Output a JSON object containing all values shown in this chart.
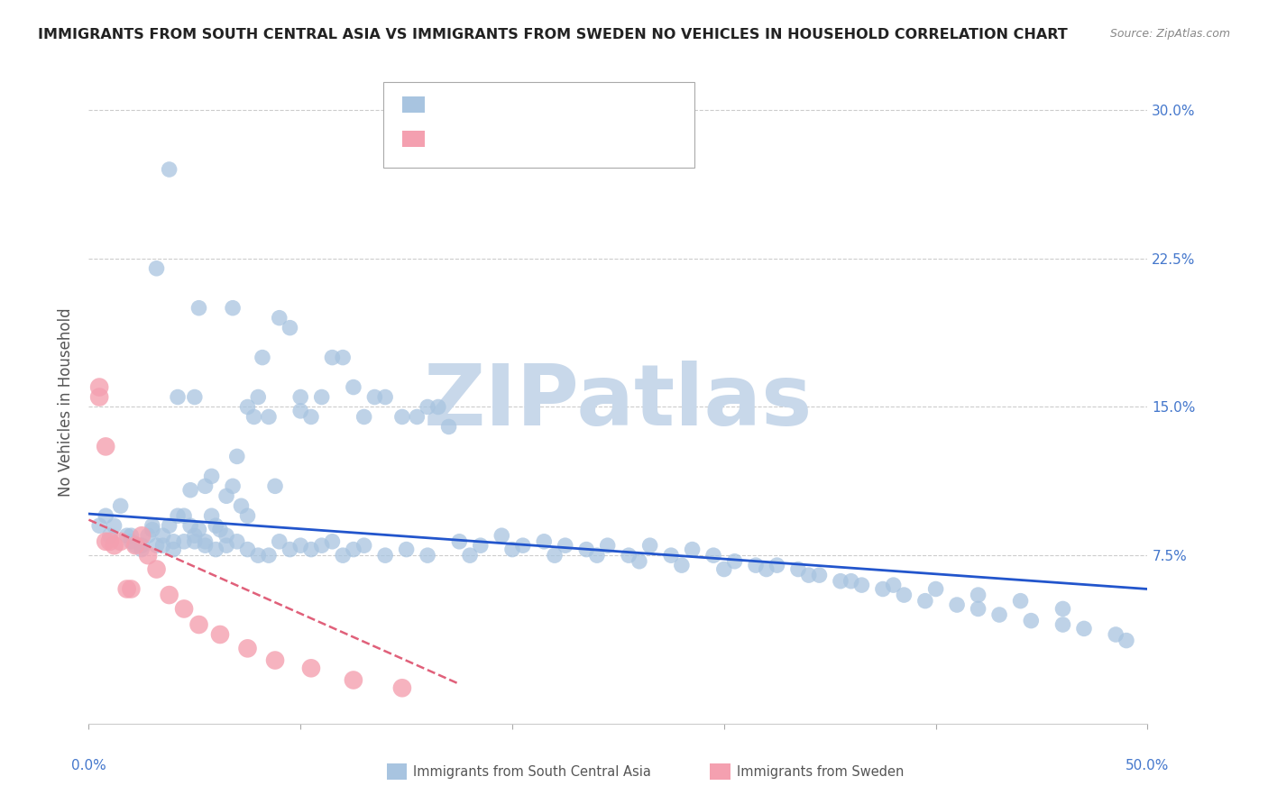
{
  "title": "IMMIGRANTS FROM SOUTH CENTRAL ASIA VS IMMIGRANTS FROM SWEDEN NO VEHICLES IN HOUSEHOLD CORRELATION CHART",
  "source": "Source: ZipAtlas.com",
  "ylabel": "No Vehicles in Household",
  "yticks": [
    0.0,
    0.075,
    0.15,
    0.225,
    0.3
  ],
  "ytick_labels": [
    "",
    "7.5%",
    "15.0%",
    "22.5%",
    "30.0%"
  ],
  "xlim": [
    0.0,
    0.5
  ],
  "ylim": [
    -0.01,
    0.315
  ],
  "legend_label1": "Immigrants from South Central Asia",
  "legend_label2": "Immigrants from Sweden",
  "blue_color": "#a8c4e0",
  "pink_color": "#f4a0b0",
  "line_blue": "#2255cc",
  "line_pink": "#e0607a",
  "watermark": "ZIPatlas",
  "watermark_color": "#c8d8ea",
  "title_color": "#222222",
  "axis_label_color": "#4477cc",
  "blue_scatter_x": [
    0.005,
    0.008,
    0.01,
    0.012,
    0.015,
    0.018,
    0.02,
    0.022,
    0.025,
    0.028,
    0.03,
    0.032,
    0.035,
    0.038,
    0.04,
    0.042,
    0.045,
    0.048,
    0.05,
    0.052,
    0.055,
    0.058,
    0.06,
    0.062,
    0.065,
    0.068,
    0.07,
    0.072,
    0.075,
    0.078,
    0.08,
    0.082,
    0.085,
    0.088,
    0.09,
    0.095,
    0.1,
    0.105,
    0.11,
    0.115,
    0.12,
    0.125,
    0.13,
    0.135,
    0.14,
    0.148,
    0.155,
    0.16,
    0.165,
    0.17,
    0.02,
    0.025,
    0.03,
    0.035,
    0.04,
    0.045,
    0.05,
    0.055,
    0.06,
    0.065,
    0.07,
    0.075,
    0.08,
    0.085,
    0.09,
    0.095,
    0.1,
    0.105,
    0.11,
    0.115,
    0.12,
    0.125,
    0.13,
    0.14,
    0.15,
    0.16,
    0.18,
    0.2,
    0.22,
    0.24,
    0.26,
    0.28,
    0.3,
    0.32,
    0.34,
    0.36,
    0.38,
    0.4,
    0.42,
    0.44,
    0.46,
    0.048,
    0.055,
    0.058,
    0.065,
    0.032,
    0.042,
    0.038,
    0.052,
    0.068,
    0.175,
    0.185,
    0.195,
    0.205,
    0.215,
    0.225,
    0.235,
    0.245,
    0.255,
    0.265,
    0.275,
    0.285,
    0.295,
    0.305,
    0.315,
    0.325,
    0.335,
    0.345,
    0.355,
    0.365,
    0.375,
    0.385,
    0.395,
    0.41,
    0.42,
    0.43,
    0.445,
    0.46,
    0.47,
    0.485,
    0.49,
    0.05,
    0.075,
    0.1
  ],
  "blue_scatter_y": [
    0.09,
    0.095,
    0.085,
    0.09,
    0.1,
    0.085,
    0.085,
    0.08,
    0.08,
    0.085,
    0.09,
    0.08,
    0.085,
    0.09,
    0.082,
    0.095,
    0.095,
    0.09,
    0.085,
    0.088,
    0.082,
    0.095,
    0.09,
    0.088,
    0.085,
    0.11,
    0.125,
    0.1,
    0.095,
    0.145,
    0.155,
    0.175,
    0.145,
    0.11,
    0.195,
    0.19,
    0.155,
    0.145,
    0.155,
    0.175,
    0.175,
    0.16,
    0.145,
    0.155,
    0.155,
    0.145,
    0.145,
    0.15,
    0.15,
    0.14,
    0.082,
    0.078,
    0.088,
    0.08,
    0.078,
    0.082,
    0.082,
    0.08,
    0.078,
    0.08,
    0.082,
    0.078,
    0.075,
    0.075,
    0.082,
    0.078,
    0.08,
    0.078,
    0.08,
    0.082,
    0.075,
    0.078,
    0.08,
    0.075,
    0.078,
    0.075,
    0.075,
    0.078,
    0.075,
    0.075,
    0.072,
    0.07,
    0.068,
    0.068,
    0.065,
    0.062,
    0.06,
    0.058,
    0.055,
    0.052,
    0.048,
    0.108,
    0.11,
    0.115,
    0.105,
    0.22,
    0.155,
    0.27,
    0.2,
    0.2,
    0.082,
    0.08,
    0.085,
    0.08,
    0.082,
    0.08,
    0.078,
    0.08,
    0.075,
    0.08,
    0.075,
    0.078,
    0.075,
    0.072,
    0.07,
    0.07,
    0.068,
    0.065,
    0.062,
    0.06,
    0.058,
    0.055,
    0.052,
    0.05,
    0.048,
    0.045,
    0.042,
    0.04,
    0.038,
    0.035,
    0.032,
    0.155,
    0.15,
    0.148
  ],
  "pink_scatter_x": [
    0.005,
    0.008,
    0.01,
    0.012,
    0.015,
    0.018,
    0.02,
    0.022,
    0.025,
    0.028,
    0.032,
    0.038,
    0.045,
    0.052,
    0.062,
    0.075,
    0.088,
    0.105,
    0.125,
    0.148,
    0.005,
    0.008
  ],
  "pink_scatter_y": [
    0.155,
    0.082,
    0.082,
    0.08,
    0.082,
    0.058,
    0.058,
    0.08,
    0.085,
    0.075,
    0.068,
    0.055,
    0.048,
    0.04,
    0.035,
    0.028,
    0.022,
    0.018,
    0.012,
    0.008,
    0.16,
    0.13
  ],
  "blue_line_x": [
    0.0,
    0.5
  ],
  "blue_line_y": [
    0.096,
    0.058
  ],
  "pink_line_x": [
    0.0,
    0.175
  ],
  "pink_line_y": [
    0.093,
    0.01
  ]
}
